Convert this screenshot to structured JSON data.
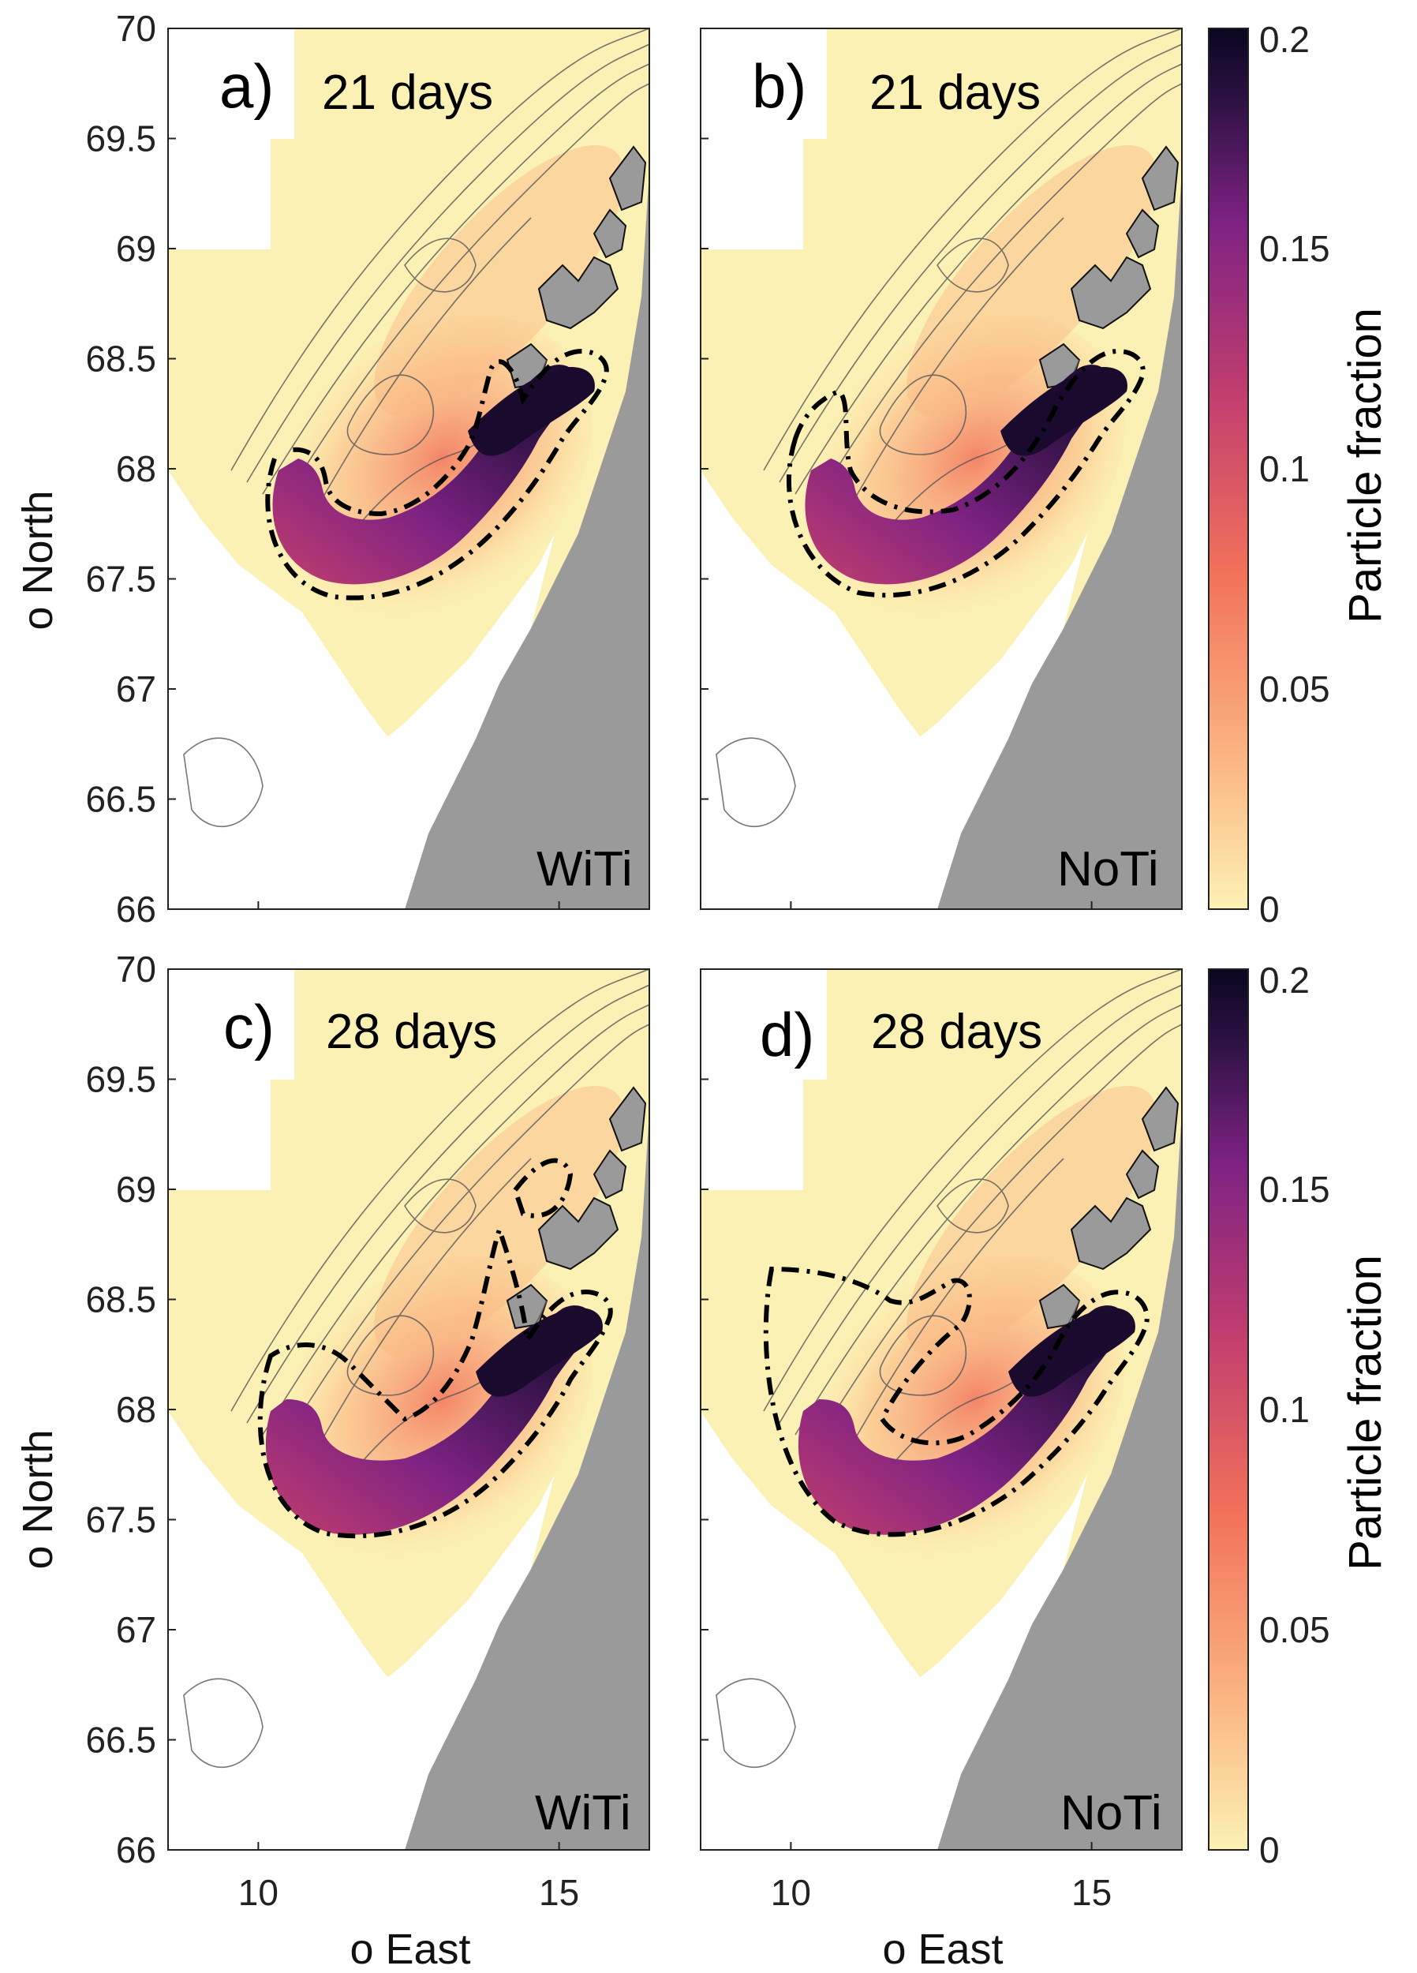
{
  "figure": {
    "x_axis_label": "o East",
    "y_axis_label": "o North",
    "x_ticks": [
      "10",
      "15"
    ],
    "y_ticks": [
      "70",
      "69.5",
      "69",
      "68.5",
      "68",
      "67.5",
      "67",
      "66.5",
      "66"
    ],
    "colorbar": {
      "title": "Particle fraction",
      "ticks": [
        "0.2",
        "0.15",
        "0.1",
        "0.05",
        "0"
      ],
      "colors": [
        "#fcf1b4",
        "#fbb583",
        "#f2725a",
        "#c33e6e",
        "#7e2283",
        "#2c1142",
        "#0a0620"
      ]
    }
  },
  "chart_data": {
    "type": "heatmap",
    "title": "",
    "xlabel": "o East",
    "ylabel": "o North",
    "xlim": [
      8.5,
      16.5
    ],
    "ylim": [
      66,
      70
    ],
    "color_range": [
      0,
      0.2
    ],
    "colorbar_label": "Particle fraction",
    "panels": [
      {
        "letter": "a)",
        "time": "21 days",
        "scenario": "WiTi"
      },
      {
        "letter": "b)",
        "time": "21 days",
        "scenario": "NoTi"
      },
      {
        "letter": "c)",
        "time": "28 days",
        "scenario": "WiTi"
      },
      {
        "letter": "d)",
        "time": "28 days",
        "scenario": "NoTi"
      }
    ]
  }
}
